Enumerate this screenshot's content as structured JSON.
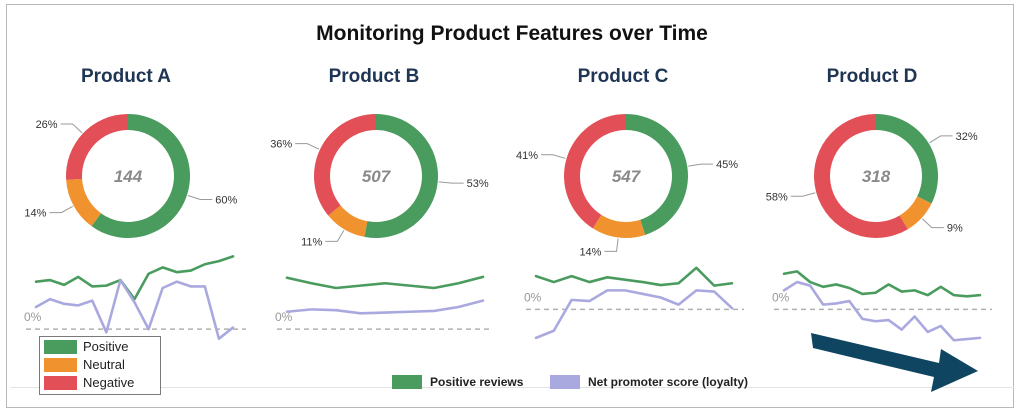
{
  "title": "Monitoring Product Features over Time",
  "colors": {
    "positive": "#4a9b5e",
    "neutral": "#f0932f",
    "negative": "#e24f57",
    "loyalty": "#a9a9df",
    "arrow": "#0f4560",
    "baseline": "#b0b0b0"
  },
  "key": [
    {
      "label": "Positive",
      "color": "#4a9b5e"
    },
    {
      "label": "Neutral",
      "color": "#f0932f"
    },
    {
      "label": "Negative",
      "color": "#e24f57"
    }
  ],
  "legend": [
    {
      "label": "Positive reviews",
      "color": "#4a9b5e"
    },
    {
      "label": "Net promoter score (loyalty)",
      "color": "#a9a9df"
    }
  ],
  "chart_data": [
    {
      "type": "pie",
      "title": "Product A",
      "center_label": "144",
      "slices": [
        {
          "name": "Positive",
          "value": 60,
          "label": "60%"
        },
        {
          "name": "Neutral",
          "value": 14,
          "label": "14%"
        },
        {
          "name": "Negative",
          "value": 26,
          "label": "26%"
        }
      ]
    },
    {
      "type": "pie",
      "title": "Product B",
      "center_label": "507",
      "slices": [
        {
          "name": "Positive",
          "value": 53,
          "label": "53%"
        },
        {
          "name": "Neutral",
          "value": 11,
          "label": "11%"
        },
        {
          "name": "Negative",
          "value": 36,
          "label": "36%"
        }
      ]
    },
    {
      "type": "pie",
      "title": "Product C",
      "center_label": "547",
      "slices": [
        {
          "name": "Positive",
          "value": 45,
          "label": "45%"
        },
        {
          "name": "Neutral",
          "value": 14,
          "label": "14%"
        },
        {
          "name": "Negative",
          "value": 41,
          "label": "41%"
        }
      ]
    },
    {
      "type": "pie",
      "title": "Product D",
      "center_label": "318",
      "slices": [
        {
          "name": "Positive",
          "value": 32,
          "label": "32%"
        },
        {
          "name": "Neutral",
          "value": 9,
          "label": "9%"
        },
        {
          "name": "Negative",
          "value": 58,
          "label": "58%"
        }
      ]
    },
    {
      "type": "line",
      "title": "Product A",
      "baseline_label": "0%",
      "ylim": [
        -20,
        100
      ],
      "series": [
        {
          "name": "Positive reviews",
          "values": [
            60,
            62,
            56,
            66,
            54,
            55,
            62,
            38,
            70,
            78,
            72,
            74,
            82,
            86,
            92
          ]
        },
        {
          "name": "Net promoter score (loyalty)",
          "values": [
            28,
            38,
            32,
            30,
            36,
            -4,
            62,
            34,
            0,
            52,
            60,
            54,
            54,
            -12,
            2
          ]
        }
      ]
    },
    {
      "type": "line",
      "title": "Product B",
      "baseline_label": "0%",
      "ylim": [
        -20,
        100
      ],
      "series": [
        {
          "name": "Positive reviews",
          "values": [
            65,
            58,
            52,
            55,
            58,
            55,
            52,
            58,
            66
          ]
        },
        {
          "name": "Net promoter score (loyalty)",
          "values": [
            22,
            25,
            24,
            20,
            21,
            22,
            23,
            28,
            36
          ]
        }
      ]
    },
    {
      "type": "line",
      "title": "Product C",
      "baseline_label": "0%",
      "ylim": [
        -60,
        100
      ],
      "series": [
        {
          "name": "Positive reviews",
          "values": [
            56,
            46,
            56,
            46,
            54,
            50,
            46,
            41,
            44,
            70,
            40,
            44
          ]
        },
        {
          "name": "Net promoter score (loyalty)",
          "values": [
            -48,
            -36,
            16,
            14,
            32,
            32,
            26,
            20,
            8,
            32,
            30,
            2
          ]
        }
      ]
    },
    {
      "type": "line",
      "title": "Product D",
      "baseline_label": "0%",
      "ylim": [
        -60,
        100
      ],
      "series": [
        {
          "name": "Positive reviews",
          "values": [
            60,
            64,
            46,
            38,
            42,
            36,
            26,
            28,
            42,
            30,
            32,
            24,
            38,
            24,
            22,
            24
          ]
        },
        {
          "name": "Net promoter score (loyalty)",
          "values": [
            32,
            46,
            40,
            8,
            10,
            14,
            -16,
            -20,
            -18,
            -34,
            -12,
            -38,
            -28,
            -52,
            -50,
            -48
          ]
        }
      ]
    }
  ]
}
